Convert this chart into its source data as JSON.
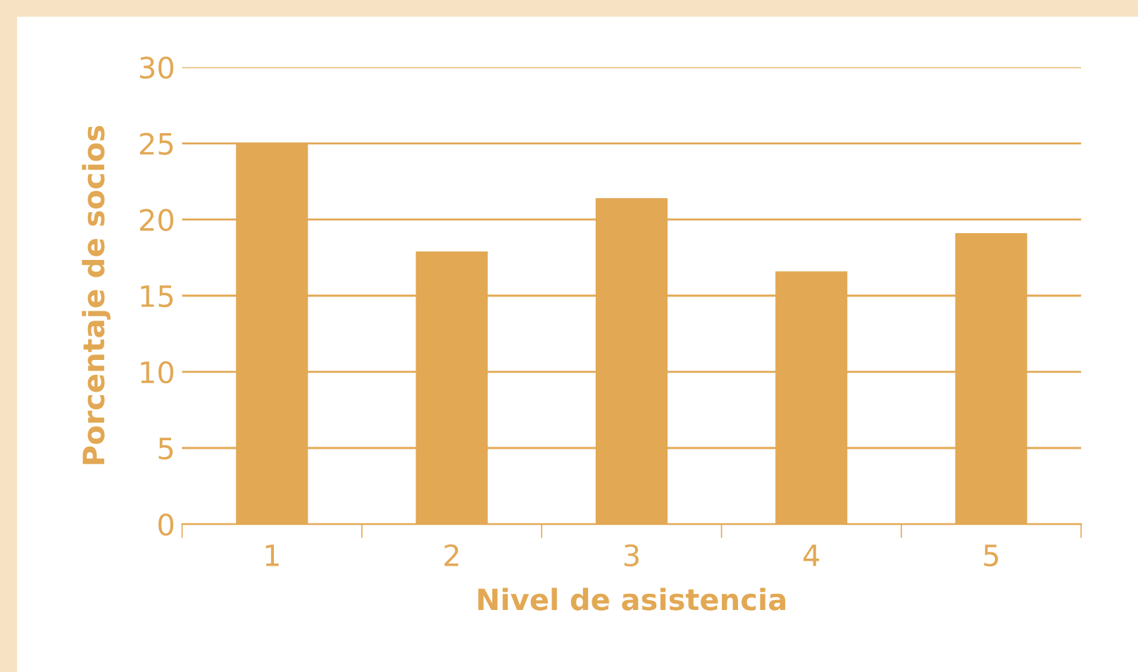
{
  "chart_data": {
    "type": "bar",
    "xlabel": "Nivel de asistencia",
    "ylabel": "Porcentaje de socios",
    "categories": [
      "1",
      "2",
      "3",
      "4",
      "5"
    ],
    "values": [
      25,
      17.9,
      21.4,
      16.6,
      19.1
    ],
    "color": "#e2a854",
    "ylim": [
      0,
      30
    ],
    "yticks": [
      0,
      5,
      10,
      15,
      20,
      25,
      30
    ],
    "grid": "y"
  }
}
